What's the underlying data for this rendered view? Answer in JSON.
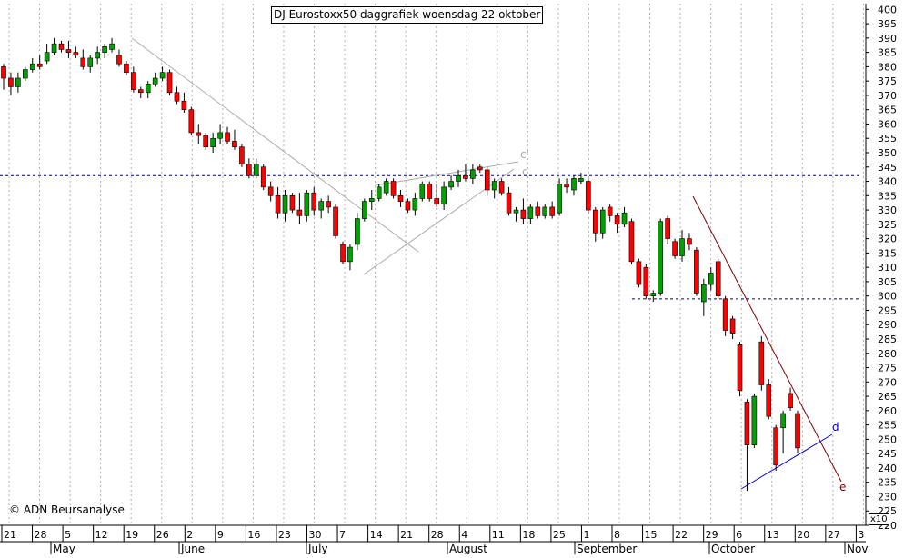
{
  "chart_data": {
    "type": "candlestick",
    "title": "DJ Eurostoxx50 daggrafiek woensdag 22 oktober",
    "ylim": [
      220,
      402
    ],
    "y_ticks": [
      220,
      225,
      230,
      235,
      240,
      245,
      250,
      255,
      260,
      265,
      270,
      275,
      280,
      285,
      290,
      295,
      300,
      305,
      310,
      315,
      320,
      325,
      330,
      335,
      340,
      345,
      350,
      355,
      360,
      365,
      370,
      375,
      380,
      385,
      390,
      395,
      400
    ],
    "y_scale_note": "x10",
    "x_day_ticks": [
      "21",
      "28",
      "5",
      "12",
      "19",
      "26",
      "2",
      "9",
      "16",
      "23",
      "30",
      "7",
      "14",
      "21",
      "28",
      "4",
      "11",
      "18",
      "25",
      "1",
      "8",
      "15",
      "22",
      "29",
      "6",
      "13",
      "20",
      "27",
      "3"
    ],
    "month_labels": [
      "May",
      "June",
      "July",
      "August",
      "September",
      "October",
      "Nov"
    ],
    "horizontal_levels": [
      342,
      299
    ],
    "annotations": [
      "c'",
      "c",
      "d",
      "e"
    ],
    "up_color": "#00a000",
    "down_color": "#ff0000",
    "trend_line_color": "#aaaaaa",
    "resistance_line_color": "#800000",
    "support_line_color": "#0000cc",
    "level_line_color": "#000080",
    "candles": [
      {
        "o": 380,
        "h": 381,
        "l": 372,
        "c": 376
      },
      {
        "o": 376,
        "h": 378,
        "l": 370,
        "c": 373
      },
      {
        "o": 373,
        "h": 378,
        "l": 371,
        "c": 376
      },
      {
        "o": 376,
        "h": 380,
        "l": 375,
        "c": 379
      },
      {
        "o": 379,
        "h": 383,
        "l": 378,
        "c": 381
      },
      {
        "o": 381,
        "h": 384,
        "l": 379,
        "c": 380
      },
      {
        "o": 382,
        "h": 388,
        "l": 381,
        "c": 385
      },
      {
        "o": 385,
        "h": 390,
        "l": 384,
        "c": 388
      },
      {
        "o": 388,
        "h": 389,
        "l": 385,
        "c": 386
      },
      {
        "o": 386,
        "h": 389,
        "l": 383,
        "c": 385
      },
      {
        "o": 385,
        "h": 387,
        "l": 383,
        "c": 384
      },
      {
        "o": 383,
        "h": 386,
        "l": 379,
        "c": 380
      },
      {
        "o": 380,
        "h": 384,
        "l": 378,
        "c": 383
      },
      {
        "o": 383,
        "h": 387,
        "l": 381,
        "c": 385
      },
      {
        "o": 385,
        "h": 388,
        "l": 383,
        "c": 387
      },
      {
        "o": 386,
        "h": 390,
        "l": 385,
        "c": 388
      },
      {
        "o": 384,
        "h": 386,
        "l": 380,
        "c": 381
      },
      {
        "o": 381,
        "h": 382,
        "l": 377,
        "c": 378
      },
      {
        "o": 378,
        "h": 380,
        "l": 371,
        "c": 372
      },
      {
        "o": 372,
        "h": 373,
        "l": 369,
        "c": 371
      },
      {
        "o": 371,
        "h": 375,
        "l": 369,
        "c": 374
      },
      {
        "o": 374,
        "h": 378,
        "l": 373,
        "c": 376
      },
      {
        "o": 376,
        "h": 380,
        "l": 375,
        "c": 378
      },
      {
        "o": 378,
        "h": 379,
        "l": 370,
        "c": 371
      },
      {
        "o": 371,
        "h": 373,
        "l": 367,
        "c": 368
      },
      {
        "o": 368,
        "h": 371,
        "l": 364,
        "c": 365
      },
      {
        "o": 365,
        "h": 366,
        "l": 356,
        "c": 357
      },
      {
        "o": 357,
        "h": 360,
        "l": 353,
        "c": 356
      },
      {
        "o": 356,
        "h": 357,
        "l": 351,
        "c": 352
      },
      {
        "o": 352,
        "h": 357,
        "l": 350,
        "c": 355
      },
      {
        "o": 355,
        "h": 360,
        "l": 353,
        "c": 357
      },
      {
        "o": 357,
        "h": 359,
        "l": 353,
        "c": 354
      },
      {
        "o": 354,
        "h": 358,
        "l": 351,
        "c": 352
      },
      {
        "o": 352,
        "h": 353,
        "l": 345,
        "c": 346
      },
      {
        "o": 346,
        "h": 348,
        "l": 341,
        "c": 342
      },
      {
        "o": 342,
        "h": 348,
        "l": 341,
        "c": 346
      },
      {
        "o": 345,
        "h": 346,
        "l": 337,
        "c": 338
      },
      {
        "o": 338,
        "h": 340,
        "l": 333,
        "c": 335
      },
      {
        "o": 335,
        "h": 338,
        "l": 327,
        "c": 329
      },
      {
        "o": 329,
        "h": 337,
        "l": 326,
        "c": 335
      },
      {
        "o": 335,
        "h": 336,
        "l": 329,
        "c": 330
      },
      {
        "o": 330,
        "h": 336,
        "l": 325,
        "c": 328
      },
      {
        "o": 328,
        "h": 337,
        "l": 326,
        "c": 336
      },
      {
        "o": 336,
        "h": 338,
        "l": 328,
        "c": 330
      },
      {
        "o": 330,
        "h": 334,
        "l": 327,
        "c": 333
      },
      {
        "o": 333,
        "h": 335,
        "l": 329,
        "c": 331
      },
      {
        "o": 331,
        "h": 332,
        "l": 320,
        "c": 321
      },
      {
        "o": 318,
        "h": 319,
        "l": 311,
        "c": 312
      },
      {
        "o": 312,
        "h": 318,
        "l": 309,
        "c": 317
      },
      {
        "o": 318,
        "h": 329,
        "l": 316,
        "c": 327
      },
      {
        "o": 327,
        "h": 334,
        "l": 326,
        "c": 333
      },
      {
        "o": 333,
        "h": 337,
        "l": 330,
        "c": 334
      },
      {
        "o": 334,
        "h": 339,
        "l": 333,
        "c": 338
      },
      {
        "o": 336,
        "h": 341,
        "l": 335,
        "c": 340
      },
      {
        "o": 340,
        "h": 341,
        "l": 334,
        "c": 335
      },
      {
        "o": 335,
        "h": 337,
        "l": 331,
        "c": 333
      },
      {
        "o": 333,
        "h": 334,
        "l": 329,
        "c": 330
      },
      {
        "o": 330,
        "h": 336,
        "l": 328,
        "c": 334
      },
      {
        "o": 334,
        "h": 340,
        "l": 333,
        "c": 339
      },
      {
        "o": 339,
        "h": 340,
        "l": 333,
        "c": 334
      },
      {
        "o": 334,
        "h": 339,
        "l": 331,
        "c": 332
      },
      {
        "o": 332,
        "h": 340,
        "l": 330,
        "c": 338
      },
      {
        "o": 338,
        "h": 342,
        "l": 337,
        "c": 340
      },
      {
        "o": 340,
        "h": 344,
        "l": 338,
        "c": 342
      },
      {
        "o": 342,
        "h": 346,
        "l": 340,
        "c": 341
      },
      {
        "o": 341,
        "h": 346,
        "l": 339,
        "c": 344
      },
      {
        "o": 345,
        "h": 346,
        "l": 343,
        "c": 344
      },
      {
        "o": 344,
        "h": 345,
        "l": 335,
        "c": 337
      },
      {
        "o": 337,
        "h": 341,
        "l": 334,
        "c": 340
      },
      {
        "o": 340,
        "h": 341,
        "l": 335,
        "c": 336
      },
      {
        "o": 336,
        "h": 338,
        "l": 328,
        "c": 329
      },
      {
        "o": 329,
        "h": 331,
        "l": 326,
        "c": 330
      },
      {
        "o": 330,
        "h": 334,
        "l": 325,
        "c": 327
      },
      {
        "o": 327,
        "h": 332,
        "l": 325,
        "c": 331
      },
      {
        "o": 331,
        "h": 333,
        "l": 327,
        "c": 328
      },
      {
        "o": 328,
        "h": 332,
        "l": 327,
        "c": 331
      },
      {
        "o": 331,
        "h": 333,
        "l": 327,
        "c": 328
      },
      {
        "o": 329,
        "h": 341,
        "l": 328,
        "c": 339
      },
      {
        "o": 339,
        "h": 341,
        "l": 336,
        "c": 338
      },
      {
        "o": 337,
        "h": 342,
        "l": 335,
        "c": 341
      },
      {
        "o": 340,
        "h": 343,
        "l": 339,
        "c": 341
      },
      {
        "o": 340,
        "h": 341,
        "l": 329,
        "c": 330
      },
      {
        "o": 330,
        "h": 331,
        "l": 319,
        "c": 322
      },
      {
        "o": 322,
        "h": 331,
        "l": 320,
        "c": 330
      },
      {
        "o": 331,
        "h": 332,
        "l": 326,
        "c": 328
      },
      {
        "o": 328,
        "h": 329,
        "l": 322,
        "c": 325
      },
      {
        "o": 325,
        "h": 331,
        "l": 324,
        "c": 329
      },
      {
        "o": 326,
        "h": 327,
        "l": 311,
        "c": 312
      },
      {
        "o": 312,
        "h": 313,
        "l": 303,
        "c": 304
      },
      {
        "o": 310,
        "h": 311,
        "l": 299,
        "c": 300
      },
      {
        "o": 300,
        "h": 302,
        "l": 298,
        "c": 301
      },
      {
        "o": 301,
        "h": 327,
        "l": 300,
        "c": 326
      },
      {
        "o": 327,
        "h": 328,
        "l": 318,
        "c": 320
      },
      {
        "o": 319,
        "h": 320,
        "l": 313,
        "c": 314
      },
      {
        "o": 314,
        "h": 323,
        "l": 312,
        "c": 320
      },
      {
        "o": 320,
        "h": 322,
        "l": 316,
        "c": 318
      },
      {
        "o": 316,
        "h": 317,
        "l": 300,
        "c": 301
      },
      {
        "o": 298,
        "h": 306,
        "l": 293,
        "c": 304
      },
      {
        "o": 304,
        "h": 310,
        "l": 302,
        "c": 308
      },
      {
        "o": 312,
        "h": 313,
        "l": 299,
        "c": 300
      },
      {
        "o": 299,
        "h": 300,
        "l": 286,
        "c": 288
      },
      {
        "o": 292,
        "h": 293,
        "l": 285,
        "c": 287
      },
      {
        "o": 283,
        "h": 284,
        "l": 265,
        "c": 267
      },
      {
        "o": 263,
        "h": 264,
        "l": 232,
        "c": 248
      },
      {
        "o": 248,
        "h": 266,
        "l": 247,
        "c": 265
      },
      {
        "o": 284,
        "h": 286,
        "l": 267,
        "c": 269
      },
      {
        "o": 269,
        "h": 271,
        "l": 257,
        "c": 258
      },
      {
        "o": 254,
        "h": 255,
        "l": 239,
        "c": 241
      },
      {
        "o": 254,
        "h": 260,
        "l": 245,
        "c": 259
      },
      {
        "o": 266,
        "h": 268,
        "l": 260,
        "c": 261
      },
      {
        "o": 259,
        "h": 260,
        "l": 245,
        "c": 247
      }
    ]
  }
}
